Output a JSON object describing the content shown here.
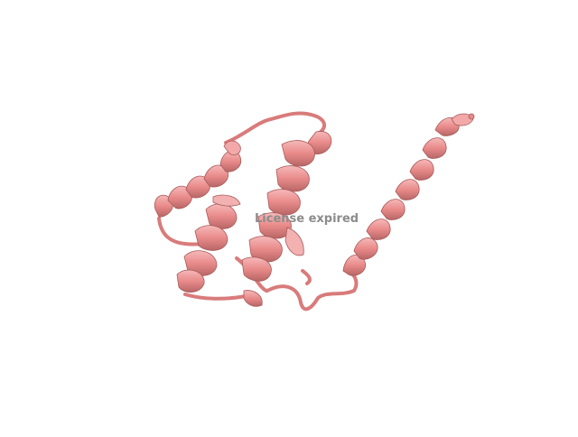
{
  "viewer": {
    "watermark_text": "License expired",
    "background_color": "#ffffff",
    "ribbon_color": "#e98a8a",
    "ribbon_shadow_color": "#a85a5a",
    "ribbon_highlight_color": "#f6b9b9",
    "watermark_color": "#8c8c8c"
  }
}
